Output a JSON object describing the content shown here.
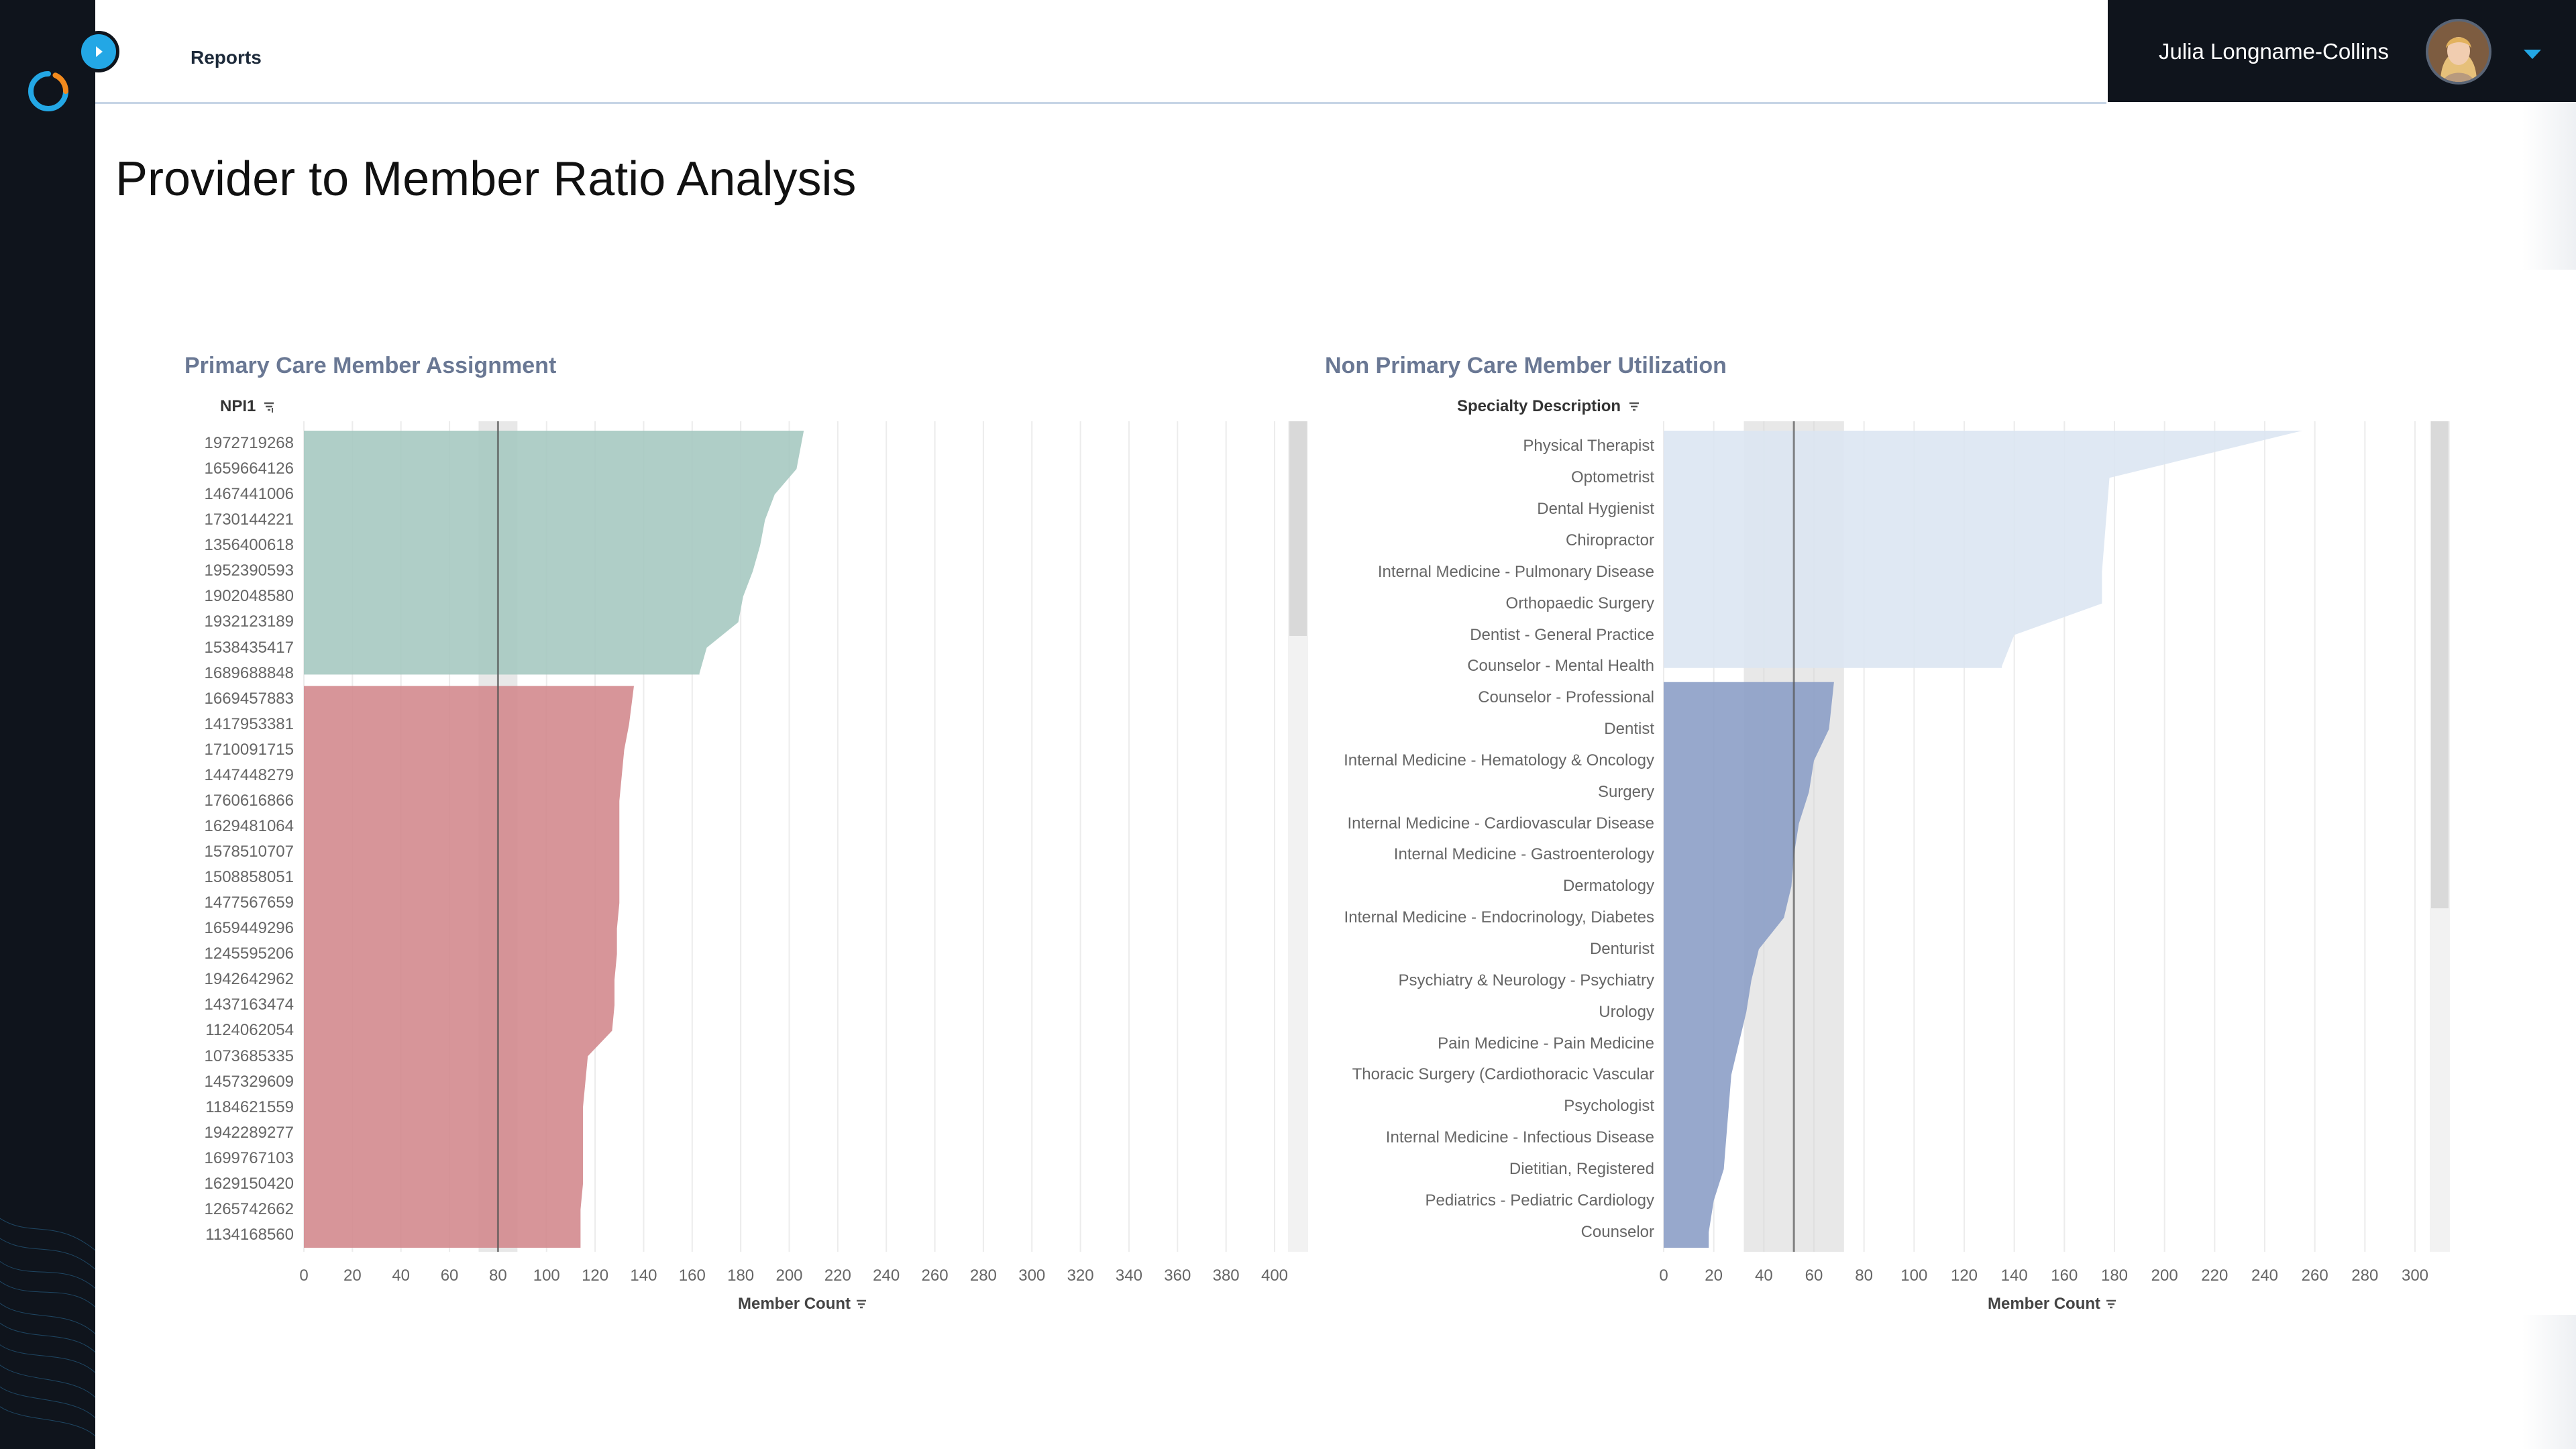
{
  "app": {
    "nav_reports": "Reports",
    "user_name": "Julia Longname-Collins",
    "page_title": "Provider to Member Ratio Analysis"
  },
  "icons": {
    "logo": "logo-icon",
    "expand": "chevron-right-icon",
    "dropdown": "caret-down-icon",
    "sort": "sort-icon"
  },
  "colors": {
    "sidebar": "#0f141c",
    "accent": "#23a7e5",
    "primary_top": "#a6c9c1",
    "primary_bottom": "#d38a8e",
    "nonprimary_top": "#dbe5f2",
    "nonprimary_bottom": "#8c9fc6"
  },
  "chart_data": [
    {
      "type": "bar",
      "title": "Primary Care Member Assignment",
      "column_header": "NPI1",
      "xlabel": "Member Count",
      "xlim": [
        0,
        400
      ],
      "x_ticks": [
        0,
        20,
        40,
        60,
        80,
        100,
        120,
        140,
        160,
        180,
        200,
        220,
        240,
        260,
        280,
        300,
        320,
        340,
        360,
        380,
        400
      ],
      "x_tick_labels": [
        "0",
        "20",
        "40",
        "60",
        "80",
        "100",
        "120",
        "140",
        "160",
        "180",
        "200",
        "220",
        "240",
        "260",
        "280",
        "300",
        "320",
        "340",
        "360",
        "380",
        "400"
      ],
      "reference_line": 80,
      "categories": [
        "1972719268",
        "1659664126",
        "1467441006",
        "1730144221",
        "1356400618",
        "1952390593",
        "1902048580",
        "1932123189",
        "1538435417",
        "1689688848",
        "1669457883",
        "1417953381",
        "1710091715",
        "1447448279",
        "1760616866",
        "1629481064",
        "1578510707",
        "1508858051",
        "1477567659",
        "1659449296",
        "1245595206",
        "1942642962",
        "1437163474",
        "1124062054",
        "1073685335",
        "1457329609",
        "1184621559",
        "1942289277",
        "1699767103",
        "1629150420",
        "1265742662",
        "1134168560"
      ],
      "values": [
        206,
        203,
        194,
        190,
        188,
        185,
        181,
        179,
        166,
        163,
        136,
        134,
        132,
        131,
        130,
        130,
        130,
        130,
        130,
        129,
        129,
        128,
        128,
        127,
        117,
        116,
        115,
        115,
        115,
        115,
        114,
        114
      ],
      "group_split_index": 10
    },
    {
      "type": "bar",
      "title": "Non Primary Care Member Utilization",
      "column_header": "Specialty Description",
      "xlabel": "Member Count",
      "xlim": [
        0,
        300
      ],
      "x_ticks": [
        0,
        20,
        40,
        60,
        80,
        100,
        120,
        140,
        160,
        180,
        200,
        220,
        240,
        260,
        280,
        300
      ],
      "x_tick_labels": [
        "0",
        "20",
        "40",
        "60",
        "80",
        "100",
        "120",
        "140",
        "160",
        "180",
        "200",
        "220",
        "240",
        "260",
        "280",
        "300"
      ],
      "reference_line": 52,
      "categories": [
        "Physical Therapist",
        "Optometrist",
        "Dental Hygienist",
        "Chiropractor",
        "Internal Medicine - Pulmonary Disease",
        "Orthopaedic Surgery",
        "Dentist - General Practice",
        "Counselor - Mental Health",
        "Counselor - Professional",
        "Dentist",
        "Internal Medicine - Hematology & Oncology",
        "Surgery",
        "Internal Medicine - Cardiovascular Disease",
        "Internal Medicine - Gastroenterology",
        "Dermatology",
        "Internal Medicine - Endocrinology, Diabetes",
        "Denturist",
        "Psychiatry & Neurology - Psychiatry",
        "Urology",
        "Pain Medicine - Pain Medicine",
        "Thoracic Surgery (Cardiothoracic Vascular",
        "Psychologist",
        "Internal Medicine - Infectious Disease",
        "Dietitian, Registered",
        "Pediatrics - Pediatric Cardiology",
        "Counselor"
      ],
      "values": [
        255,
        178,
        177,
        176,
        175,
        175,
        140,
        135,
        68,
        66,
        60,
        58,
        54,
        52,
        51,
        48,
        38,
        35,
        33,
        30,
        27,
        26,
        25,
        24,
        20,
        18
      ],
      "group_split_index": 8
    }
  ]
}
